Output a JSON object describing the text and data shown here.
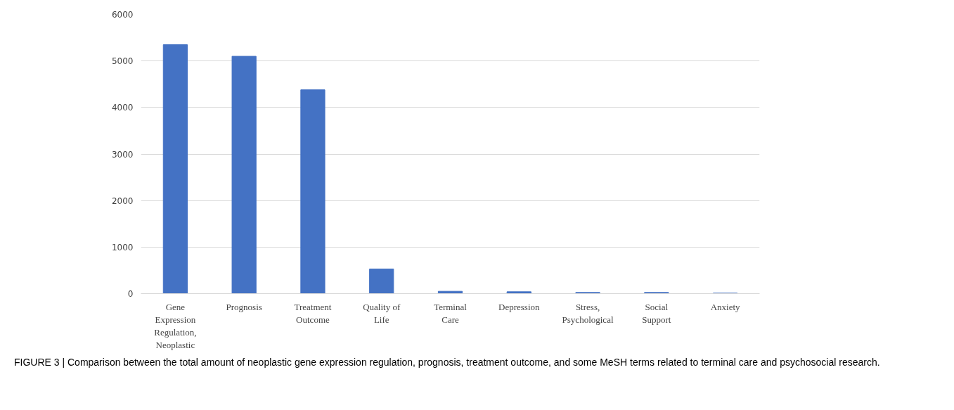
{
  "chart_data": {
    "type": "bar",
    "categories": [
      "Gene Expression Regulation, Neoplastic",
      "Prognosis",
      "Treatment Outcome",
      "Quality of Life",
      "Terminal Care",
      "Depression",
      "Stress, Psychological",
      "Social Support",
      "Anxiety"
    ],
    "values": [
      5350,
      5100,
      4380,
      530,
      50,
      40,
      25,
      25,
      10
    ],
    "color": "#4472c4",
    "ylim": [
      0,
      6000
    ],
    "yticks": [
      0,
      1000,
      2000,
      3000,
      4000,
      5000,
      6000
    ],
    "grid": "y",
    "annotations": [
      "FIGURE 3 | Comparison between the total amount of neoplastic gene expression regulation, prognosis, treatment outcome, and some MeSH terms related to terminal care and psychosocial research."
    ]
  }
}
